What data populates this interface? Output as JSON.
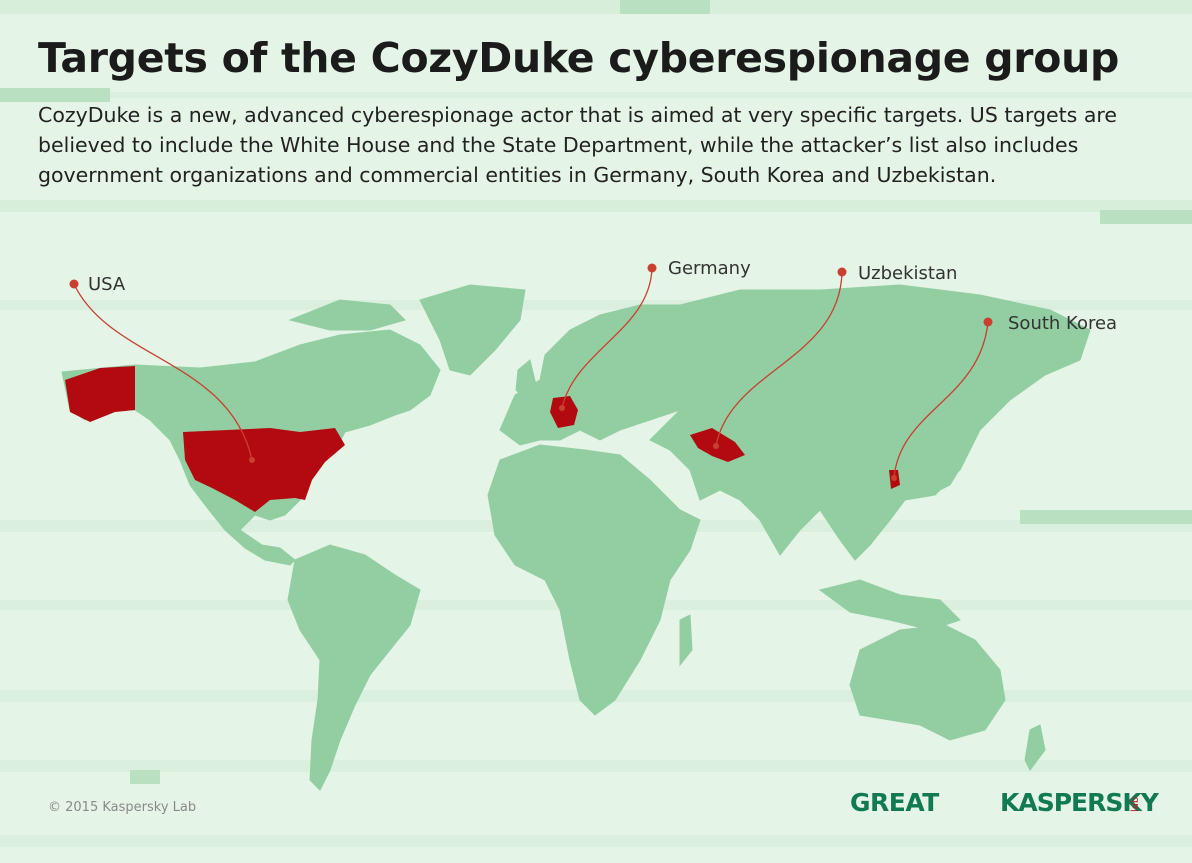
{
  "header": {
    "title": "Targets of the CozyDuke cyberespionage group",
    "description": "CozyDuke is a new, advanced cyberespionage actor that is aimed at very specific targets. US targets are believed to include the White House and the State Department, while the attacker’s list also includes government organizations and commercial entities in Germany, South Korea and Uzbekistan."
  },
  "map": {
    "labels": [
      "USA",
      "Germany",
      "Uzbekistan",
      "South Korea"
    ]
  },
  "footer": {
    "copyright": "© 2015 Kaspersky Lab",
    "logo_great": "GREAT",
    "logo_kaspersky": "KASPERSKY",
    "logo_lab": "lab"
  }
}
